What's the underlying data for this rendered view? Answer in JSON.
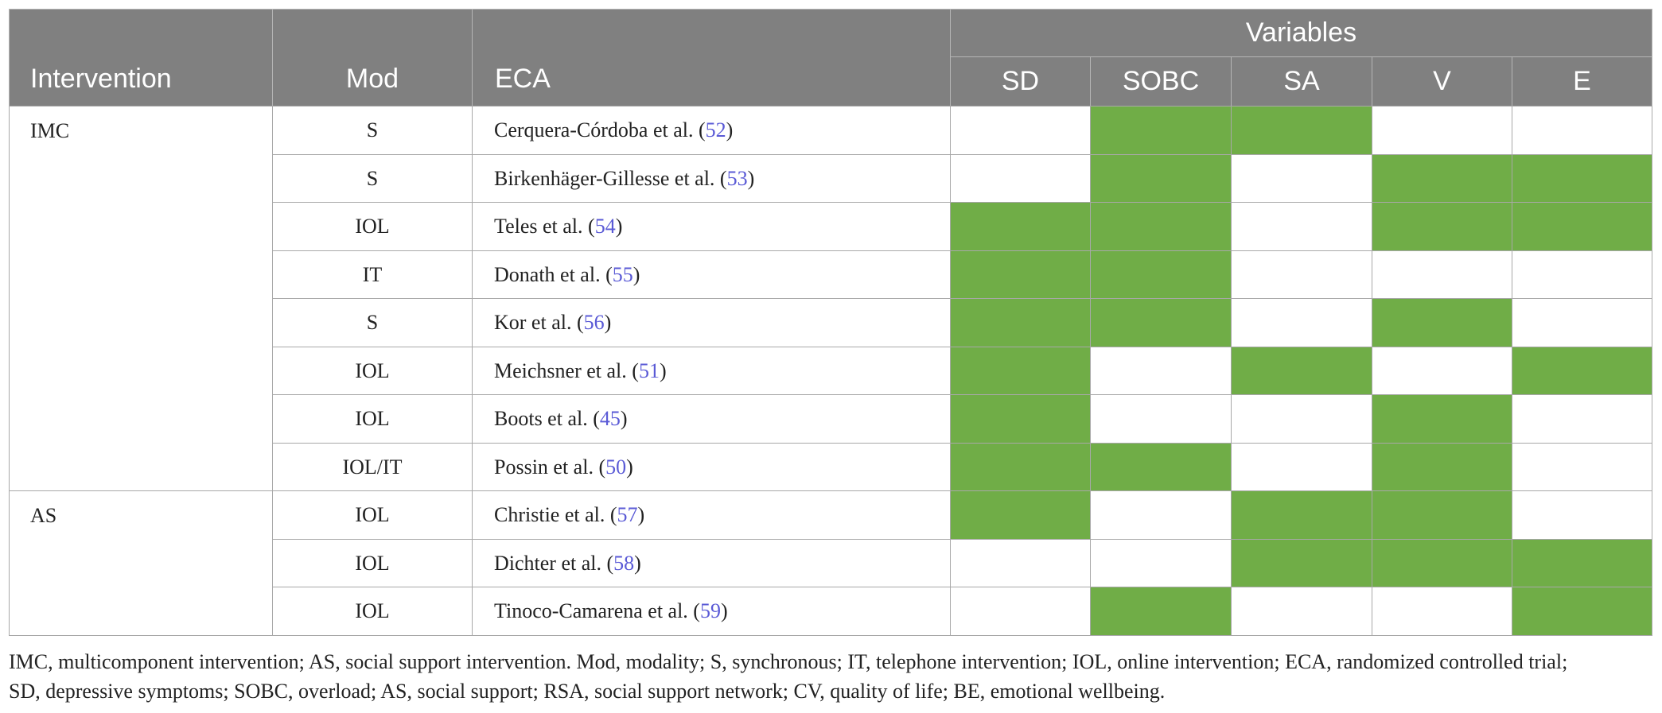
{
  "table": {
    "header": {
      "intervention": "Intervention",
      "mod": "Mod",
      "eca": "ECA",
      "variables": "Variables",
      "columns": [
        "SD",
        "SOBC",
        "SA",
        "V",
        "E"
      ]
    },
    "groups": [
      {
        "intervention": "IMC",
        "rows": [
          {
            "mod": "S",
            "eca": [
              "Cerquera-Córdoba et al. (",
              "52",
              ")"
            ],
            "cells": [
              false,
              true,
              true,
              false,
              false
            ]
          },
          {
            "mod": "S",
            "eca": [
              "Birkenhäger-Gillesse et al. (",
              "53",
              ")"
            ],
            "cells": [
              false,
              true,
              false,
              true,
              true
            ]
          },
          {
            "mod": "IOL",
            "eca": [
              "Teles et al. (",
              "54",
              ")"
            ],
            "cells": [
              true,
              true,
              false,
              true,
              true
            ]
          },
          {
            "mod": "IT",
            "eca": [
              "Donath et al. (",
              "55",
              ")"
            ],
            "cells": [
              true,
              true,
              false,
              false,
              false
            ]
          },
          {
            "mod": "S",
            "eca": [
              "Kor et al. (",
              "56",
              ")"
            ],
            "cells": [
              true,
              true,
              false,
              true,
              false
            ]
          },
          {
            "mod": "IOL",
            "eca": [
              "Meichsner et al. (",
              "51",
              ")"
            ],
            "cells": [
              true,
              false,
              true,
              false,
              true
            ]
          },
          {
            "mod": "IOL",
            "eca": [
              "Boots et al. (",
              "45",
              ")"
            ],
            "cells": [
              true,
              false,
              false,
              true,
              false
            ]
          },
          {
            "mod": "IOL/IT",
            "eca": [
              "Possin et al. (",
              "50",
              ")"
            ],
            "cells": [
              true,
              true,
              false,
              true,
              false
            ]
          }
        ]
      },
      {
        "intervention": "AS",
        "rows": [
          {
            "mod": "IOL",
            "eca": [
              "Christie et al. (",
              "57",
              ")"
            ],
            "cells": [
              true,
              false,
              true,
              true,
              false
            ]
          },
          {
            "mod": "IOL",
            "eca": [
              "Dichter et al. (",
              "58",
              ")"
            ],
            "cells": [
              false,
              false,
              true,
              true,
              true
            ]
          },
          {
            "mod": "IOL",
            "eca": [
              "Tinoco-Camarena et al. (",
              "59",
              ")"
            ],
            "cells": [
              false,
              true,
              false,
              false,
              true
            ]
          }
        ]
      }
    ],
    "fill_color": "#70ad47",
    "footnote": [
      "IMC, multicomponent intervention; AS, social support intervention. Mod, modality; S, synchronous; IT, telephone intervention; IOL, online intervention; ECA, randomized controlled trial;",
      "SD, depressive symptoms; SOBC, overload; AS, social support; RSA, social support network; CV, quality of life; BE, emotional wellbeing."
    ]
  }
}
